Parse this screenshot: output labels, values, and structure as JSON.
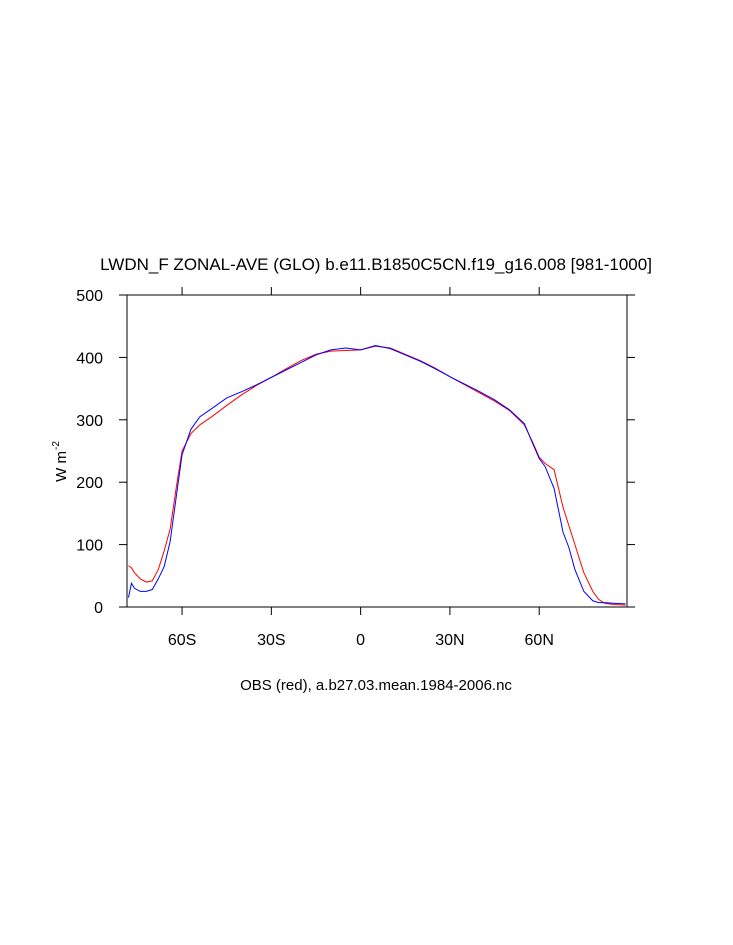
{
  "chart_data": {
    "type": "line",
    "title": "LWDN_F ZONAL-AVE (GLO) b.e11.B1850C5CN.f19_g16.008 [981-1000]",
    "xlabel": "OBS (red), a.b27.03.mean.1984-2006.nc",
    "ylabel": "W m",
    "ylabel_superscript": "-2",
    "x": [
      -78,
      -77,
      -76,
      -74,
      -72,
      -70,
      -68,
      -66,
      -64,
      -62,
      -60,
      -57,
      -54,
      -50,
      -45,
      -40,
      -35,
      -30,
      -25,
      -20,
      -15,
      -10,
      -5,
      0,
      5,
      10,
      15,
      20,
      25,
      30,
      35,
      40,
      45,
      50,
      55,
      58,
      60,
      62,
      65,
      68,
      70,
      72,
      75,
      78,
      80,
      82,
      85,
      89
    ],
    "series": [
      {
        "color": "#ff0000",
        "values": [
          66,
          63,
          55,
          45,
          40,
          42,
          60,
          90,
          125,
          190,
          250,
          278,
          292,
          305,
          323,
          340,
          355,
          368,
          382,
          395,
          405,
          410,
          411,
          412,
          418,
          415,
          405,
          395,
          383,
          369,
          356,
          343,
          330,
          315,
          292,
          262,
          240,
          230,
          220,
          160,
          130,
          100,
          55,
          25,
          12,
          6,
          4,
          3
        ]
      },
      {
        "color": "#0000ff",
        "values": [
          15,
          38,
          30,
          25,
          25,
          28,
          45,
          65,
          105,
          175,
          244,
          285,
          305,
          318,
          335,
          345,
          356,
          368,
          380,
          392,
          404,
          412,
          415,
          412,
          419,
          414,
          404,
          394,
          382,
          369,
          357,
          345,
          332,
          316,
          294,
          260,
          238,
          225,
          190,
          120,
          95,
          60,
          25,
          10,
          7,
          7,
          6,
          5
        ]
      }
    ],
    "xlim": [
      -78.5,
      89.5
    ],
    "xticks": [
      {
        "value": -60,
        "label": "60S"
      },
      {
        "value": -30,
        "label": "30S"
      },
      0,
      {
        "value": 30,
        "label": "30N"
      },
      {
        "value": 60,
        "label": "60N"
      }
    ],
    "ylim": [
      0,
      500
    ],
    "yticks": [
      0,
      100,
      200,
      300,
      400,
      500
    ],
    "grid": false
  }
}
